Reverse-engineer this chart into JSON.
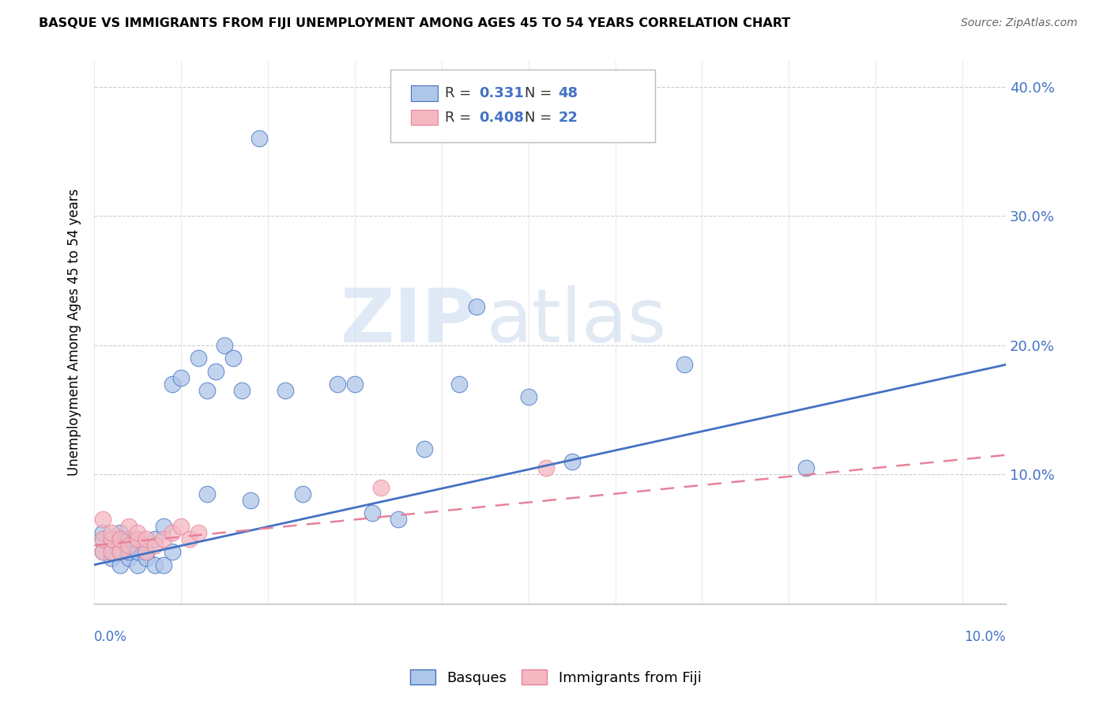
{
  "title": "BASQUE VS IMMIGRANTS FROM FIJI UNEMPLOYMENT AMONG AGES 45 TO 54 YEARS CORRELATION CHART",
  "source": "Source: ZipAtlas.com",
  "ylabel": "Unemployment Among Ages 45 to 54 years",
  "ylim": [
    0.0,
    0.42
  ],
  "xlim": [
    0.0,
    0.105
  ],
  "ytick_values": [
    0.0,
    0.1,
    0.2,
    0.3,
    0.4
  ],
  "ytick_labels": [
    "",
    "10.0%",
    "20.0%",
    "30.0%",
    "40.0%"
  ],
  "legend_r_basque": "0.331",
  "legend_n_basque": "48",
  "legend_r_fiji": "0.408",
  "legend_n_fiji": "22",
  "basque_color": "#aec6e8",
  "fiji_color": "#f4b8c1",
  "basque_line_color": "#4472c4",
  "fiji_line_color": "#e8829a",
  "watermark_zip": "ZIP",
  "watermark_atlas": "atlas",
  "basque_x": [
    0.001,
    0.001,
    0.001,
    0.002,
    0.002,
    0.002,
    0.002,
    0.003,
    0.003,
    0.003,
    0.003,
    0.004,
    0.004,
    0.004,
    0.005,
    0.005,
    0.005,
    0.006,
    0.006,
    0.007,
    0.007,
    0.008,
    0.008,
    0.009,
    0.009,
    0.01,
    0.012,
    0.013,
    0.013,
    0.014,
    0.015,
    0.016,
    0.017,
    0.018,
    0.019,
    0.022,
    0.024,
    0.028,
    0.03,
    0.032,
    0.035,
    0.038,
    0.042,
    0.044,
    0.05,
    0.055,
    0.068,
    0.082
  ],
  "basque_y": [
    0.04,
    0.05,
    0.055,
    0.035,
    0.04,
    0.045,
    0.05,
    0.03,
    0.04,
    0.05,
    0.055,
    0.035,
    0.04,
    0.05,
    0.03,
    0.04,
    0.05,
    0.035,
    0.04,
    0.03,
    0.05,
    0.03,
    0.06,
    0.04,
    0.17,
    0.175,
    0.19,
    0.085,
    0.165,
    0.18,
    0.2,
    0.19,
    0.165,
    0.08,
    0.36,
    0.165,
    0.085,
    0.17,
    0.17,
    0.07,
    0.065,
    0.12,
    0.17,
    0.23,
    0.16,
    0.11,
    0.185,
    0.105
  ],
  "fiji_x": [
    0.001,
    0.001,
    0.001,
    0.002,
    0.002,
    0.002,
    0.003,
    0.003,
    0.004,
    0.004,
    0.005,
    0.005,
    0.006,
    0.006,
    0.007,
    0.008,
    0.009,
    0.01,
    0.011,
    0.012,
    0.033,
    0.052
  ],
  "fiji_y": [
    0.04,
    0.05,
    0.065,
    0.04,
    0.05,
    0.055,
    0.04,
    0.05,
    0.045,
    0.06,
    0.05,
    0.055,
    0.04,
    0.05,
    0.045,
    0.05,
    0.055,
    0.06,
    0.05,
    0.055,
    0.09,
    0.105
  ],
  "basque_line": {
    "x0": 0.0,
    "y0": 0.03,
    "x1": 0.105,
    "y1": 0.185
  },
  "fiji_line": {
    "x0": 0.0,
    "y0": 0.045,
    "x1": 0.105,
    "y1": 0.115
  }
}
